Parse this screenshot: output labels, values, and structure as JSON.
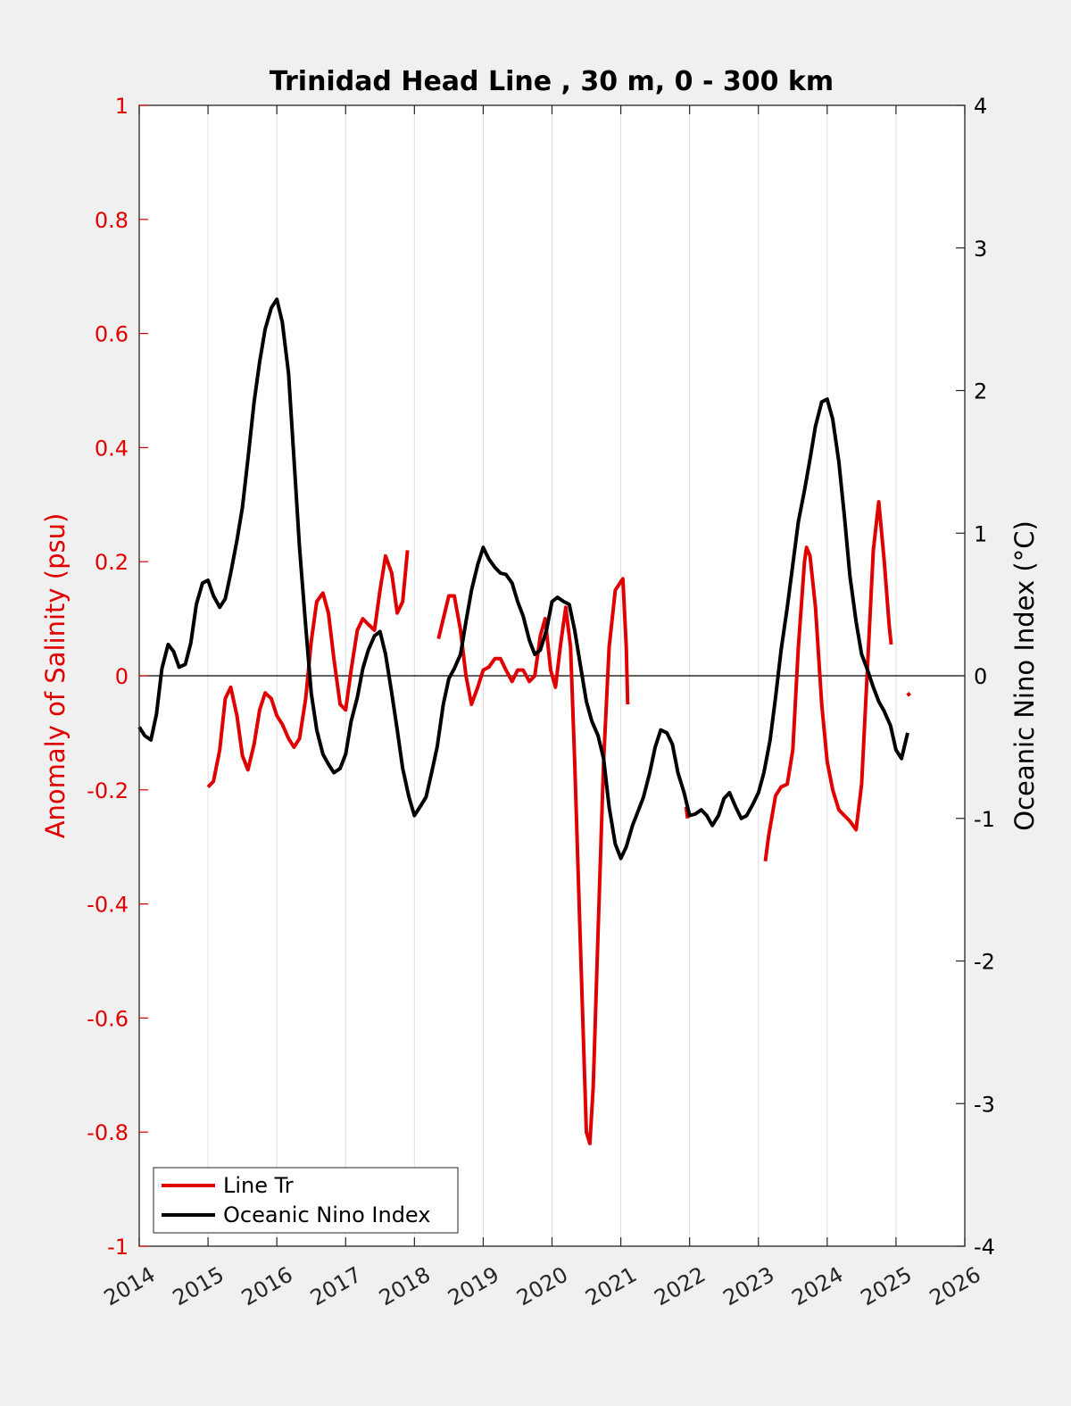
{
  "chart_data": {
    "type": "line",
    "title": "Trinidad Head Line , 30 m, 0 - 300 km",
    "ylabel_left": "Anomaly of Salinity (psu)",
    "ylabel_right": "Oceanic Nino Index (°C)",
    "xlim": [
      2014,
      2026
    ],
    "ylim_left": [
      -1,
      1
    ],
    "ylim_right": [
      -4,
      4
    ],
    "x_ticks": [
      "2014",
      "2015",
      "2016",
      "2017",
      "2018",
      "2019",
      "2020",
      "2021",
      "2022",
      "2023",
      "2024",
      "2025",
      "2026"
    ],
    "x_tick_values": [
      2014,
      2015,
      2016,
      2017,
      2018,
      2019,
      2020,
      2021,
      2022,
      2023,
      2024,
      2025,
      2026
    ],
    "y_ticks_left": [
      "1",
      "0.8",
      "0.6",
      "0.4",
      "0.2",
      "0",
      "-0.2",
      "-0.4",
      "-0.6",
      "-0.8",
      "-1"
    ],
    "y_tick_values_left": [
      1,
      0.8,
      0.6,
      0.4,
      0.2,
      0,
      -0.2,
      -0.4,
      -0.6,
      -0.8,
      -1
    ],
    "y_ticks_right": [
      "4",
      "3",
      "2",
      "1",
      "0",
      "-1",
      "-2",
      "-3",
      "-4"
    ],
    "y_tick_values_right": [
      4,
      3,
      2,
      1,
      0,
      -1,
      -2,
      -3,
      -4
    ],
    "grid": "vertical",
    "legend_position": "bottom-left",
    "series": [
      {
        "name": "Line Tr",
        "axis": "left",
        "color": "#e00000",
        "segments": [
          [
            [
              2015.0,
              -0.195
            ],
            [
              2015.08,
              -0.185
            ],
            [
              2015.17,
              -0.13
            ],
            [
              2015.25,
              -0.04
            ],
            [
              2015.33,
              -0.02
            ],
            [
              2015.42,
              -0.07
            ],
            [
              2015.5,
              -0.14
            ],
            [
              2015.58,
              -0.165
            ],
            [
              2015.67,
              -0.12
            ],
            [
              2015.75,
              -0.06
            ],
            [
              2015.83,
              -0.03
            ],
            [
              2015.92,
              -0.04
            ],
            [
              2016.0,
              -0.07
            ],
            [
              2016.08,
              -0.085
            ],
            [
              2016.17,
              -0.11
            ],
            [
              2016.25,
              -0.125
            ],
            [
              2016.33,
              -0.11
            ],
            [
              2016.42,
              -0.04
            ],
            [
              2016.5,
              0.06
            ],
            [
              2016.58,
              0.13
            ],
            [
              2016.67,
              0.145
            ],
            [
              2016.75,
              0.11
            ],
            [
              2016.83,
              0.03
            ],
            [
              2016.92,
              -0.05
            ],
            [
              2017.0,
              -0.06
            ],
            [
              2017.08,
              0.01
            ],
            [
              2017.17,
              0.08
            ],
            [
              2017.25,
              0.1
            ],
            [
              2017.33,
              0.09
            ],
            [
              2017.42,
              0.08
            ],
            [
              2017.5,
              0.15
            ],
            [
              2017.58,
              0.21
            ],
            [
              2017.67,
              0.18
            ],
            [
              2017.75,
              0.11
            ],
            [
              2017.83,
              0.13
            ],
            [
              2017.9,
              0.22
            ]
          ],
          [
            [
              2018.35,
              0.065
            ],
            [
              2018.42,
              0.1
            ],
            [
              2018.5,
              0.14
            ],
            [
              2018.58,
              0.14
            ],
            [
              2018.67,
              0.08
            ],
            [
              2018.75,
              0.0
            ],
            [
              2018.83,
              -0.05
            ],
            [
              2018.92,
              -0.02
            ],
            [
              2019.0,
              0.01
            ],
            [
              2019.08,
              0.015
            ],
            [
              2019.17,
              0.03
            ],
            [
              2019.25,
              0.03
            ],
            [
              2019.33,
              0.01
            ],
            [
              2019.42,
              -0.01
            ],
            [
              2019.5,
              0.01
            ],
            [
              2019.58,
              0.01
            ],
            [
              2019.67,
              -0.01
            ],
            [
              2019.75,
              0.0
            ],
            [
              2019.83,
              0.07
            ],
            [
              2019.9,
              0.1
            ],
            [
              2019.98,
              0.01
            ],
            [
              2020.05,
              -0.02
            ],
            [
              2020.12,
              0.05
            ],
            [
              2020.2,
              0.12
            ],
            [
              2020.27,
              0.05
            ],
            [
              2020.33,
              -0.15
            ],
            [
              2020.42,
              -0.5
            ],
            [
              2020.5,
              -0.8
            ],
            [
              2020.55,
              -0.82
            ],
            [
              2020.6,
              -0.72
            ],
            [
              2020.67,
              -0.45
            ],
            [
              2020.75,
              -0.15
            ],
            [
              2020.83,
              0.05
            ],
            [
              2020.92,
              0.15
            ],
            [
              2021.0,
              0.165
            ],
            [
              2021.03,
              0.17
            ],
            [
              2021.08,
              0.05
            ],
            [
              2021.1,
              -0.05
            ]
          ],
          [
            [
              2021.95,
              -0.23
            ],
            [
              2021.97,
              -0.25
            ]
          ],
          [
            [
              2023.1,
              -0.325
            ],
            [
              2023.15,
              -0.28
            ],
            [
              2023.25,
              -0.21
            ],
            [
              2023.33,
              -0.195
            ],
            [
              2023.42,
              -0.19
            ],
            [
              2023.5,
              -0.13
            ],
            [
              2023.58,
              0.05
            ],
            [
              2023.67,
              0.2
            ],
            [
              2023.7,
              0.225
            ],
            [
              2023.75,
              0.21
            ],
            [
              2023.83,
              0.12
            ],
            [
              2023.92,
              -0.05
            ],
            [
              2024.0,
              -0.15
            ],
            [
              2024.08,
              -0.2
            ],
            [
              2024.17,
              -0.235
            ],
            [
              2024.25,
              -0.245
            ],
            [
              2024.33,
              -0.255
            ],
            [
              2024.42,
              -0.27
            ],
            [
              2024.5,
              -0.19
            ],
            [
              2024.58,
              0.0
            ],
            [
              2024.67,
              0.22
            ],
            [
              2024.75,
              0.305
            ],
            [
              2024.83,
              0.2
            ],
            [
              2024.9,
              0.09
            ],
            [
              2024.93,
              0.055
            ]
          ],
          [
            [
              2025.17,
              -0.03
            ],
            [
              2025.2,
              -0.035
            ]
          ]
        ]
      },
      {
        "name": "Oceanic Nino Index",
        "axis": "right",
        "color": "#000000",
        "points": [
          [
            2014.0,
            -0.36
          ],
          [
            2014.08,
            -0.42
          ],
          [
            2014.17,
            -0.45
          ],
          [
            2014.25,
            -0.27
          ],
          [
            2014.33,
            0.05
          ],
          [
            2014.42,
            0.22
          ],
          [
            2014.5,
            0.17
          ],
          [
            2014.58,
            0.06
          ],
          [
            2014.67,
            0.08
          ],
          [
            2014.75,
            0.23
          ],
          [
            2014.83,
            0.5
          ],
          [
            2014.92,
            0.65
          ],
          [
            2015.0,
            0.67
          ],
          [
            2015.08,
            0.56
          ],
          [
            2015.17,
            0.48
          ],
          [
            2015.25,
            0.54
          ],
          [
            2015.33,
            0.72
          ],
          [
            2015.42,
            0.95
          ],
          [
            2015.5,
            1.18
          ],
          [
            2015.58,
            1.52
          ],
          [
            2015.67,
            1.92
          ],
          [
            2015.75,
            2.2
          ],
          [
            2015.83,
            2.43
          ],
          [
            2015.92,
            2.58
          ],
          [
            2016.0,
            2.64
          ],
          [
            2016.08,
            2.48
          ],
          [
            2016.17,
            2.12
          ],
          [
            2016.25,
            1.52
          ],
          [
            2016.33,
            0.9
          ],
          [
            2016.42,
            0.35
          ],
          [
            2016.5,
            -0.12
          ],
          [
            2016.58,
            -0.38
          ],
          [
            2016.67,
            -0.55
          ],
          [
            2016.75,
            -0.62
          ],
          [
            2016.83,
            -0.68
          ],
          [
            2016.92,
            -0.65
          ],
          [
            2017.0,
            -0.55
          ],
          [
            2017.08,
            -0.32
          ],
          [
            2017.17,
            -0.15
          ],
          [
            2017.25,
            0.05
          ],
          [
            2017.33,
            0.18
          ],
          [
            2017.42,
            0.28
          ],
          [
            2017.5,
            0.31
          ],
          [
            2017.58,
            0.15
          ],
          [
            2017.67,
            -0.12
          ],
          [
            2017.75,
            -0.38
          ],
          [
            2017.83,
            -0.65
          ],
          [
            2017.92,
            -0.85
          ],
          [
            2018.0,
            -0.98
          ],
          [
            2018.08,
            -0.92
          ],
          [
            2018.17,
            -0.85
          ],
          [
            2018.25,
            -0.68
          ],
          [
            2018.33,
            -0.5
          ],
          [
            2018.42,
            -0.2
          ],
          [
            2018.5,
            -0.02
          ],
          [
            2018.58,
            0.05
          ],
          [
            2018.67,
            0.15
          ],
          [
            2018.75,
            0.38
          ],
          [
            2018.83,
            0.6
          ],
          [
            2018.92,
            0.78
          ],
          [
            2019.0,
            0.9
          ],
          [
            2019.08,
            0.82
          ],
          [
            2019.17,
            0.76
          ],
          [
            2019.25,
            0.72
          ],
          [
            2019.33,
            0.71
          ],
          [
            2019.42,
            0.65
          ],
          [
            2019.5,
            0.52
          ],
          [
            2019.58,
            0.42
          ],
          [
            2019.67,
            0.25
          ],
          [
            2019.75,
            0.15
          ],
          [
            2019.83,
            0.18
          ],
          [
            2019.92,
            0.32
          ],
          [
            2020.0,
            0.52
          ],
          [
            2020.08,
            0.55
          ],
          [
            2020.17,
            0.52
          ],
          [
            2020.25,
            0.5
          ],
          [
            2020.33,
            0.32
          ],
          [
            2020.42,
            0.05
          ],
          [
            2020.5,
            -0.18
          ],
          [
            2020.58,
            -0.32
          ],
          [
            2020.67,
            -0.42
          ],
          [
            2020.75,
            -0.58
          ],
          [
            2020.83,
            -0.92
          ],
          [
            2020.92,
            -1.18
          ],
          [
            2021.0,
            -1.28
          ],
          [
            2021.08,
            -1.2
          ],
          [
            2021.17,
            -1.05
          ],
          [
            2021.25,
            -0.95
          ],
          [
            2021.33,
            -0.85
          ],
          [
            2021.42,
            -0.68
          ],
          [
            2021.5,
            -0.5
          ],
          [
            2021.58,
            -0.38
          ],
          [
            2021.67,
            -0.4
          ],
          [
            2021.75,
            -0.48
          ],
          [
            2021.83,
            -0.68
          ],
          [
            2021.92,
            -0.82
          ],
          [
            2022.0,
            -0.98
          ],
          [
            2022.08,
            -0.97
          ],
          [
            2022.17,
            -0.94
          ],
          [
            2022.25,
            -0.98
          ],
          [
            2022.33,
            -1.05
          ],
          [
            2022.42,
            -0.98
          ],
          [
            2022.5,
            -0.86
          ],
          [
            2022.58,
            -0.82
          ],
          [
            2022.67,
            -0.92
          ],
          [
            2022.75,
            -1.0
          ],
          [
            2022.83,
            -0.98
          ],
          [
            2022.92,
            -0.9
          ],
          [
            2023.0,
            -0.82
          ],
          [
            2023.08,
            -0.68
          ],
          [
            2023.17,
            -0.45
          ],
          [
            2023.25,
            -0.15
          ],
          [
            2023.33,
            0.18
          ],
          [
            2023.42,
            0.48
          ],
          [
            2023.5,
            0.78
          ],
          [
            2023.58,
            1.08
          ],
          [
            2023.67,
            1.3
          ],
          [
            2023.75,
            1.52
          ],
          [
            2023.83,
            1.75
          ],
          [
            2023.92,
            1.92
          ],
          [
            2024.0,
            1.94
          ],
          [
            2024.08,
            1.8
          ],
          [
            2024.17,
            1.5
          ],
          [
            2024.25,
            1.12
          ],
          [
            2024.33,
            0.7
          ],
          [
            2024.42,
            0.38
          ],
          [
            2024.5,
            0.15
          ],
          [
            2024.58,
            0.05
          ],
          [
            2024.67,
            -0.08
          ],
          [
            2024.75,
            -0.18
          ],
          [
            2024.83,
            -0.25
          ],
          [
            2024.92,
            -0.35
          ],
          [
            2025.0,
            -0.52
          ],
          [
            2025.08,
            -0.58
          ],
          [
            2025.17,
            -0.4
          ]
        ]
      }
    ]
  }
}
